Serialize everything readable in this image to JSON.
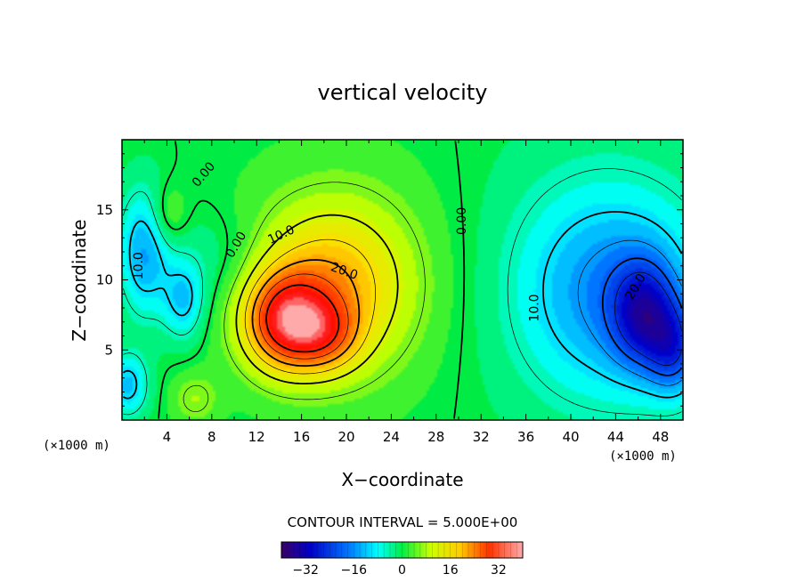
{
  "chart_data": {
    "type": "heatmap",
    "title": "vertical velocity",
    "xlabel": "X−coordinate",
    "ylabel": "Z−coordinate",
    "x_unit": "(×1000 m)",
    "y_unit": "(×1000 m)",
    "xlim": [
      0,
      50
    ],
    "ylim": [
      0,
      20
    ],
    "x_ticks": [
      4,
      8,
      12,
      16,
      20,
      24,
      28,
      32,
      36,
      40,
      44,
      48
    ],
    "y_ticks": [
      5,
      10,
      15
    ],
    "contour_interval_text": "CONTOUR INTERVAL = 5.000E+00",
    "colorbar": {
      "min": -40,
      "max": 40,
      "ticks": [
        "−32",
        "−16",
        "0",
        "16",
        "32"
      ],
      "tick_values": [
        -32,
        -16,
        0,
        16,
        32
      ]
    },
    "features": [
      {
        "kind": "updraft",
        "x": 14.5,
        "z": 7.0,
        "peak": 33
      },
      {
        "kind": "updraft",
        "x": 18.0,
        "z": 6.0,
        "peak": 22
      },
      {
        "kind": "downdraft",
        "x": 46.5,
        "z": 7.5,
        "peak": -28
      },
      {
        "kind": "downdraft",
        "x": 49.0,
        "z": 5.0,
        "peak": -20
      },
      {
        "kind": "downdraft",
        "x": 2.0,
        "z": 12.0,
        "peak": -15
      },
      {
        "kind": "downdraft",
        "x": 5.5,
        "z": 8.5,
        "peak": -12
      }
    ],
    "contour_labels": [
      {
        "text": "0.00",
        "x": 7.3,
        "z": 17.5,
        "angle": -50
      },
      {
        "text": "0.00",
        "x": 10.2,
        "z": 12.5,
        "angle": -60
      },
      {
        "text": "10.0",
        "x": 14.2,
        "z": 13.2,
        "angle": -25
      },
      {
        "text": "20.0",
        "x": 19.8,
        "z": 10.6,
        "angle": 20
      },
      {
        "text": "0.00",
        "x": 30.3,
        "z": 14.2,
        "angle": -90
      },
      {
        "text": "10.0",
        "x": 1.5,
        "z": 11.0,
        "angle": -90
      },
      {
        "text": "10.0",
        "x": 36.8,
        "z": 8.0,
        "angle": -90
      },
      {
        "text": "20.0",
        "x": 45.8,
        "z": 9.5,
        "angle": -60
      }
    ]
  }
}
